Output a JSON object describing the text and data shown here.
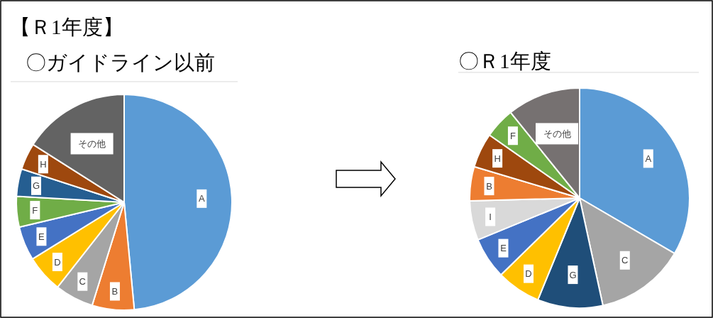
{
  "chart_data": [
    {
      "type": "pie",
      "title": "〇ガイドライン以前",
      "annotations": [
        "【Ｒ1年度】"
      ],
      "categories": [
        "A",
        "B",
        "C",
        "D",
        "E",
        "F",
        "G",
        "H",
        "その他"
      ],
      "values": [
        48.5,
        6.3,
        5.8,
        5.6,
        5.1,
        4.6,
        4.1,
        4.0,
        16.0
      ],
      "colors": [
        "#5b9bd5",
        "#ed7d31",
        "#a5a5a5",
        "#ffc000",
        "#4472c4",
        "#70ad47",
        "#255e91",
        "#9e480e",
        "#636363"
      ]
    },
    {
      "type": "pie",
      "title": "〇Ｒ1年度",
      "categories": [
        "A",
        "C",
        "G",
        "D",
        "E",
        "I",
        "B",
        "H",
        "F",
        "その他"
      ],
      "values": [
        33.4,
        13.2,
        9.6,
        6.5,
        6.1,
        5.8,
        5.0,
        5.1,
        4.5,
        10.8
      ],
      "colors": [
        "#5b9bd5",
        "#a5a5a5",
        "#1f4e79",
        "#ffc000",
        "#4472c4",
        "#d9d9d9",
        "#ed7d31",
        "#9e480e",
        "#70ad47",
        "#767171"
      ]
    }
  ]
}
